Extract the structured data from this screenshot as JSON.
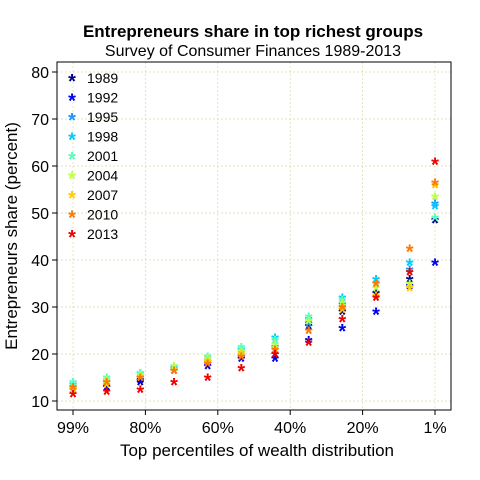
{
  "chart_data": {
    "type": "scatter",
    "title": "Entrepreneurs share in top richest groups",
    "subtitle": "Survey of Consumer Finances 1989-2013",
    "xlabel": "Top percentiles of wealth distribution",
    "ylabel": "Entrepreneurs share (percent)",
    "ylim": [
      10,
      80
    ],
    "yticks": [
      10,
      20,
      30,
      40,
      50,
      60,
      70,
      80
    ],
    "xticks": [
      {
        "pos": 0,
        "label": "99%"
      },
      {
        "pos": 1,
        "label": "80%"
      },
      {
        "pos": 2,
        "label": "60%"
      },
      {
        "pos": 3,
        "label": "40%"
      },
      {
        "pos": 4,
        "label": "20%"
      },
      {
        "pos": 5,
        "label": "1%"
      }
    ],
    "x_percentiles": [
      99,
      90,
      80,
      70,
      60,
      50,
      40,
      30,
      20,
      10,
      5,
      1
    ],
    "grid": true,
    "legend_position": "top-left",
    "marker": "*",
    "series": [
      {
        "name": "1989",
        "color": "#00008B",
        "values": [
          12.5,
          13.0,
          14.0,
          16.5,
          18.0,
          19.5,
          20.0,
          26.0,
          29.0,
          33.0,
          36.0,
          48.5
        ]
      },
      {
        "name": "1992",
        "color": "#0000EE",
        "values": [
          12.5,
          13.0,
          14.5,
          16.5,
          17.5,
          19.0,
          19.0,
          23.0,
          25.5,
          29.0,
          34.5,
          39.5
        ]
      },
      {
        "name": "1995",
        "color": "#1E90FF",
        "values": [
          13.0,
          14.0,
          15.0,
          16.5,
          18.5,
          20.5,
          21.5,
          26.5,
          30.5,
          35.0,
          38.0,
          52.0
        ]
      },
      {
        "name": "1998",
        "color": "#00CCFF",
        "values": [
          13.5,
          14.5,
          16.0,
          17.0,
          19.0,
          21.0,
          23.5,
          27.5,
          32.0,
          36.0,
          39.5,
          51.5
        ]
      },
      {
        "name": "2001",
        "color": "#55FFBB",
        "values": [
          14.0,
          15.0,
          16.0,
          17.5,
          19.5,
          21.5,
          23.0,
          28.0,
          31.5,
          35.0,
          37.5,
          49.0
        ]
      },
      {
        "name": "2004",
        "color": "#BBFF44",
        "values": [
          13.0,
          14.5,
          15.5,
          17.5,
          19.0,
          20.5,
          22.0,
          27.0,
          31.0,
          34.0,
          35.0,
          53.5
        ]
      },
      {
        "name": "2007",
        "color": "#FFCC00",
        "values": [
          12.5,
          13.5,
          15.0,
          16.5,
          18.5,
          20.0,
          21.0,
          25.0,
          29.5,
          32.5,
          34.0,
          56.0
        ]
      },
      {
        "name": "2010",
        "color": "#FF7700",
        "values": [
          13.0,
          14.0,
          15.0,
          16.5,
          18.0,
          19.5,
          21.0,
          25.0,
          30.0,
          35.0,
          42.5,
          56.5
        ]
      },
      {
        "name": "2013",
        "color": "#EE0000",
        "values": [
          11.5,
          12.0,
          12.5,
          14.0,
          15.0,
          17.0,
          20.0,
          22.5,
          27.5,
          32.0,
          37.5,
          61.0
        ]
      }
    ]
  }
}
